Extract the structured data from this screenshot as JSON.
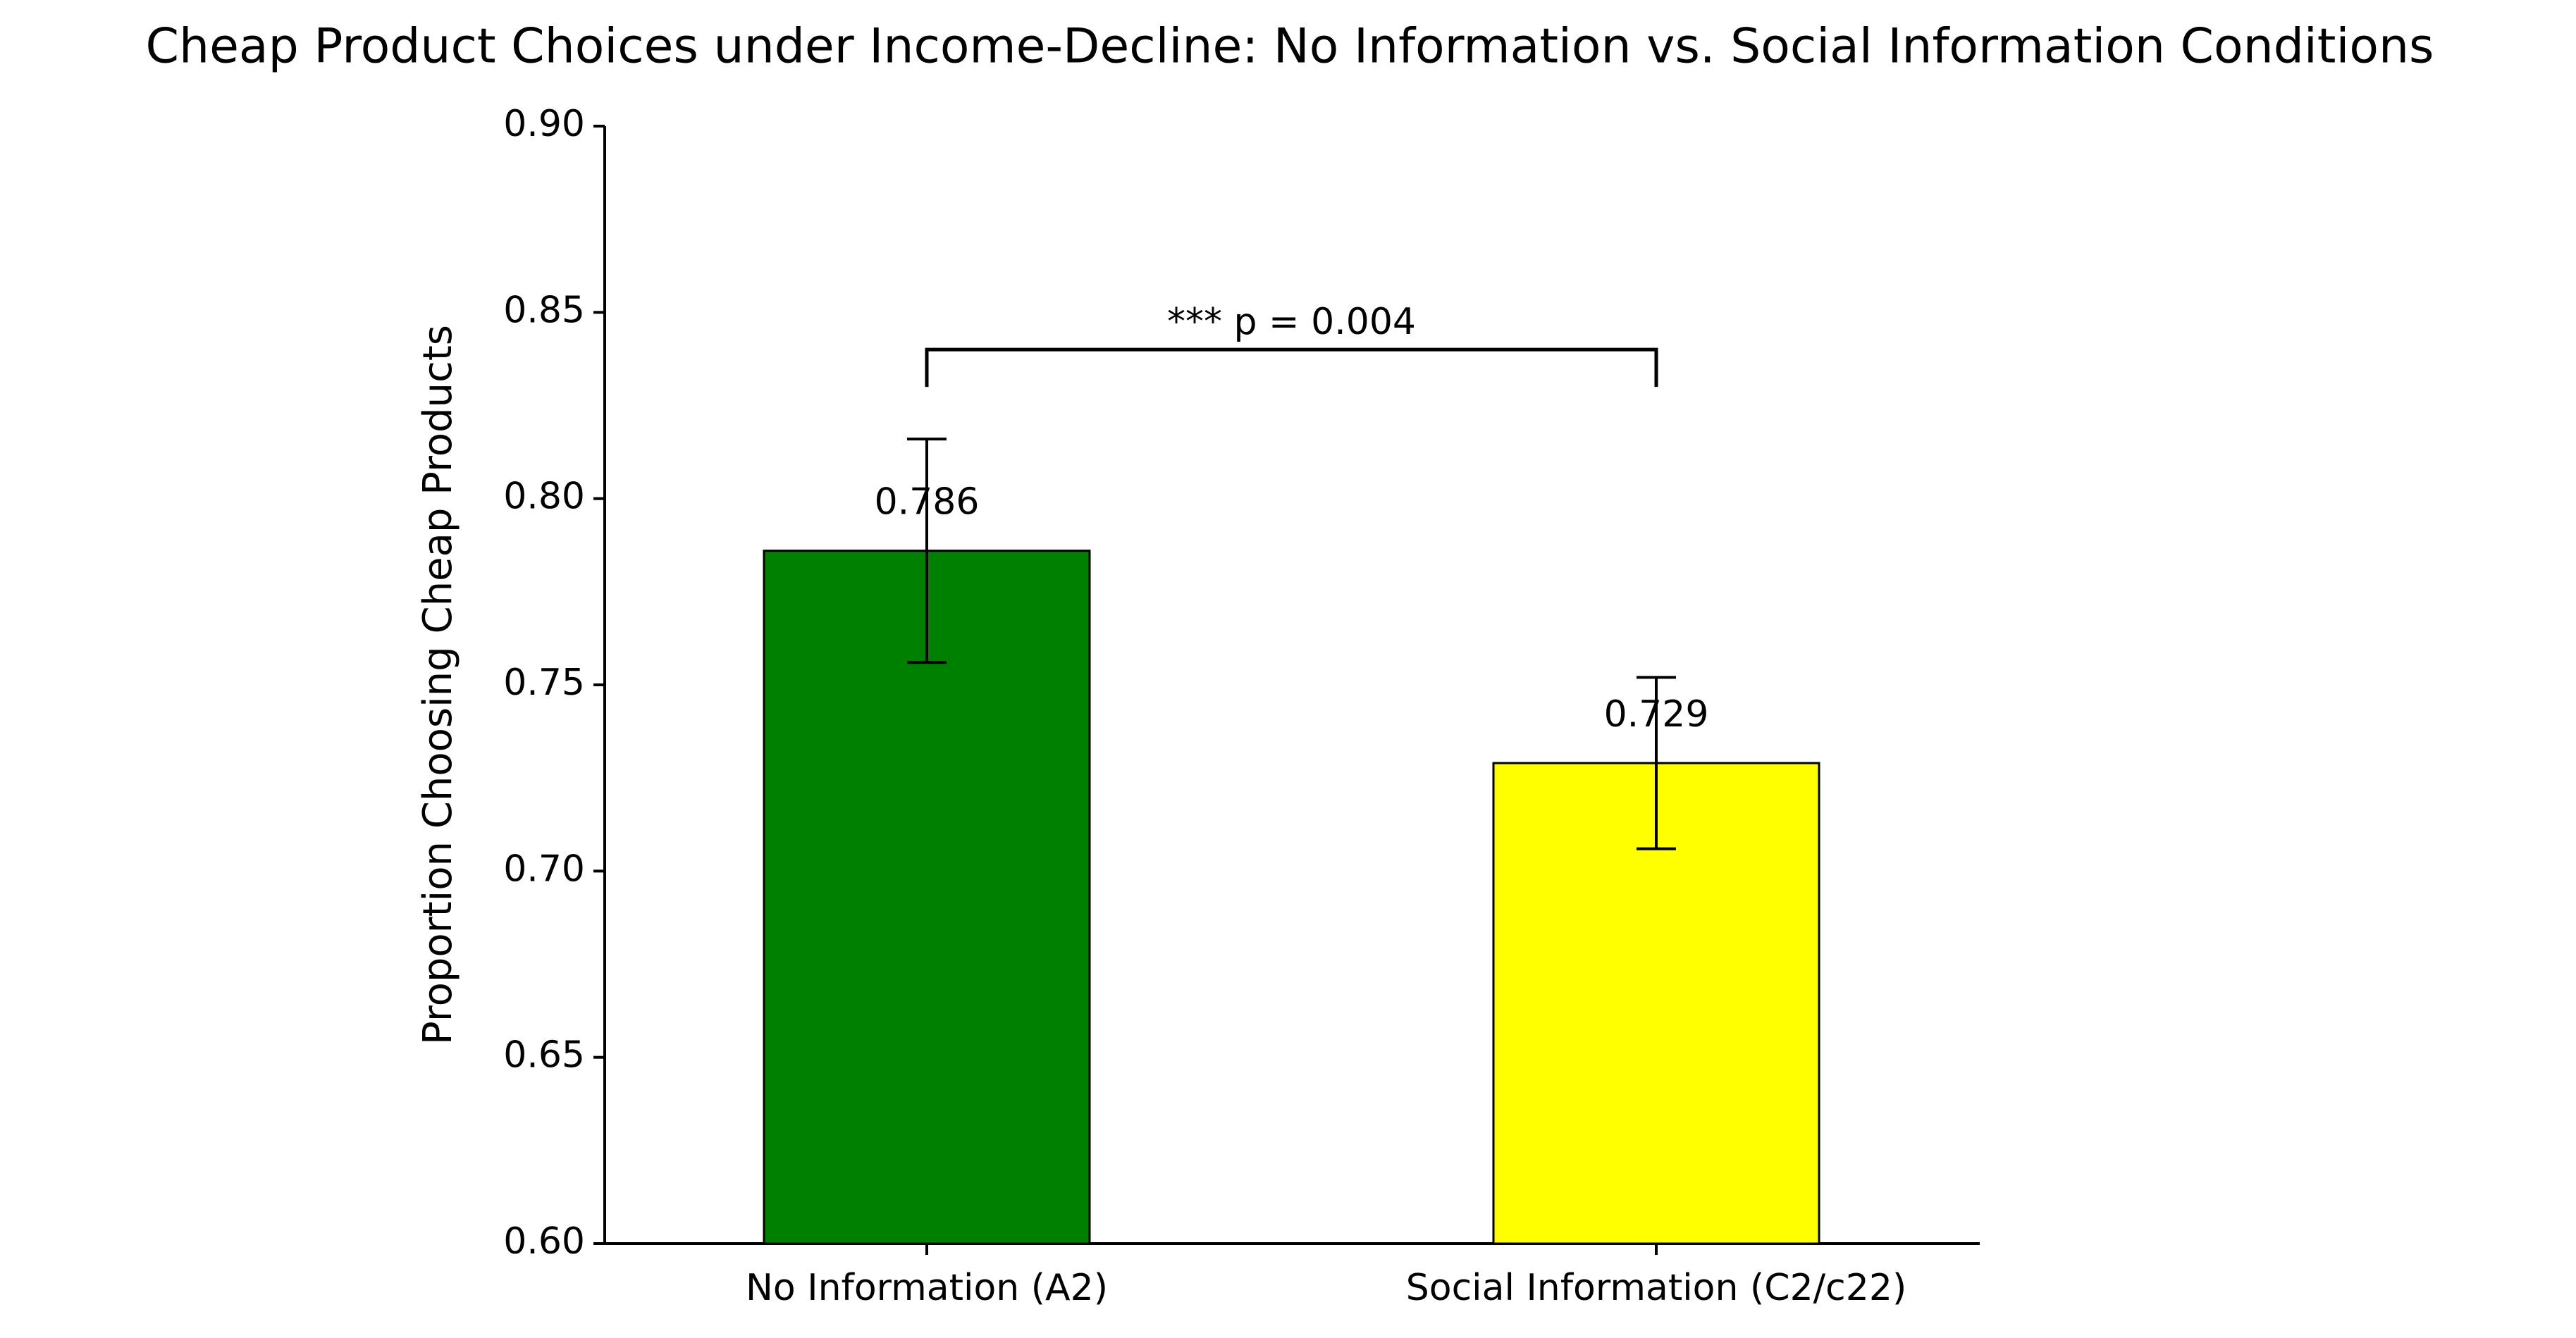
{
  "chart_data": {
    "type": "bar",
    "title": "Cheap Product Choices under Income-Decline: No Information vs. Social Information Conditions",
    "y_label": "Proportion Choosing Cheap Products",
    "categories": [
      "No Information (A2)",
      "Social Information (C2/c22)"
    ],
    "values": [
      0.786,
      0.729
    ],
    "errors": [
      0.03,
      0.023
    ],
    "colors": [
      "#008000",
      "#ffff00"
    ],
    "annotation": "*** p = 0.004",
    "ylim": [
      0.6,
      0.9
    ],
    "yticks": [
      {
        "value": 0.6,
        "label": "0.60"
      },
      0.65,
      {
        "value": 0.7,
        "label": "0.70"
      },
      0.75,
      {
        "value": 0.8,
        "label": "0.80"
      },
      0.85,
      {
        "value": 0.9,
        "label": "0.90"
      }
    ]
  }
}
